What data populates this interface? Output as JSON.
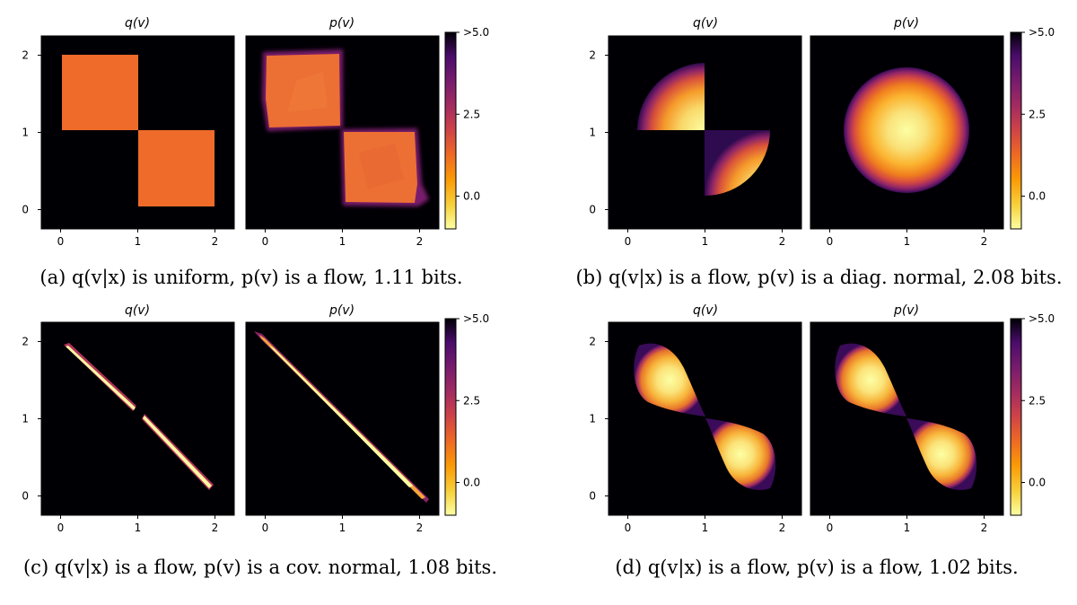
{
  "captions": {
    "a": "(a) q(v|x) is uniform, p(v) is a flow, 1.11 bits.",
    "b": "(b) q(v|x) is a flow, p(v) is a diag. normal, 2.08 bits.",
    "c": "(c) q(v|x) is a flow, p(v) is a cov. normal, 1.08 bits.",
    "d": "(d) q(v|x) is a flow, p(v) is a flow, 1.02 bits."
  },
  "chart_data": [
    {
      "id": "a",
      "type": "heatmap",
      "colormap": "inferno_r",
      "panels": [
        {
          "title": "q(v)",
          "shape": "uniform-squares"
        },
        {
          "title": "p(v)",
          "shape": "flow-squares"
        }
      ],
      "xticks": [
        "0",
        "1",
        "2"
      ],
      "yticks": [
        "0",
        "1",
        "2"
      ],
      "xlim": [
        -0.25,
        2.25
      ],
      "ylim": [
        -0.25,
        2.25
      ],
      "colorbar": {
        "ticks": [
          "0.0",
          "2.5",
          ">5.0"
        ],
        "tick_values": [
          0,
          2.5,
          5
        ],
        "range": [
          -1,
          5
        ]
      }
    },
    {
      "id": "b",
      "type": "heatmap",
      "colormap": "inferno_r",
      "panels": [
        {
          "title": "q(v)",
          "shape": "flow-quarter-discs"
        },
        {
          "title": "p(v)",
          "shape": "diag-normal-disc"
        }
      ],
      "xticks": [
        "0",
        "1",
        "2"
      ],
      "yticks": [
        "0",
        "1",
        "2"
      ],
      "xlim": [
        -0.25,
        2.25
      ],
      "ylim": [
        -0.25,
        2.25
      ],
      "colorbar": {
        "ticks": [
          "0.0",
          "2.5",
          ">5.0"
        ],
        "tick_values": [
          0,
          2.5,
          5
        ],
        "range": [
          -1,
          5
        ]
      }
    },
    {
      "id": "c",
      "type": "heatmap",
      "colormap": "inferno_r",
      "panels": [
        {
          "title": "q(v)",
          "shape": "flow-split-diagonal"
        },
        {
          "title": "p(v)",
          "shape": "cov-normal-diagonal"
        }
      ],
      "xticks": [
        "0",
        "1",
        "2"
      ],
      "yticks": [
        "0",
        "1",
        "2"
      ],
      "xlim": [
        -0.25,
        2.25
      ],
      "ylim": [
        -0.25,
        2.25
      ],
      "colorbar": {
        "ticks": [
          "0.0",
          "2.5",
          ">5.0"
        ],
        "tick_values": [
          0,
          2.5,
          5
        ],
        "range": [
          -1,
          5
        ]
      }
    },
    {
      "id": "d",
      "type": "heatmap",
      "colormap": "inferno_r",
      "panels": [
        {
          "title": "q(v)",
          "shape": "flow-blobs"
        },
        {
          "title": "p(v)",
          "shape": "flow-blobs"
        }
      ],
      "xticks": [
        "0",
        "1",
        "2"
      ],
      "yticks": [
        "0",
        "1",
        "2"
      ],
      "xlim": [
        -0.25,
        2.25
      ],
      "ylim": [
        -0.25,
        2.25
      ],
      "colorbar": {
        "ticks": [
          "0.0",
          "2.5",
          ">5.0"
        ],
        "tick_values": [
          0,
          2.5,
          5
        ],
        "range": [
          -1,
          5
        ]
      }
    }
  ]
}
